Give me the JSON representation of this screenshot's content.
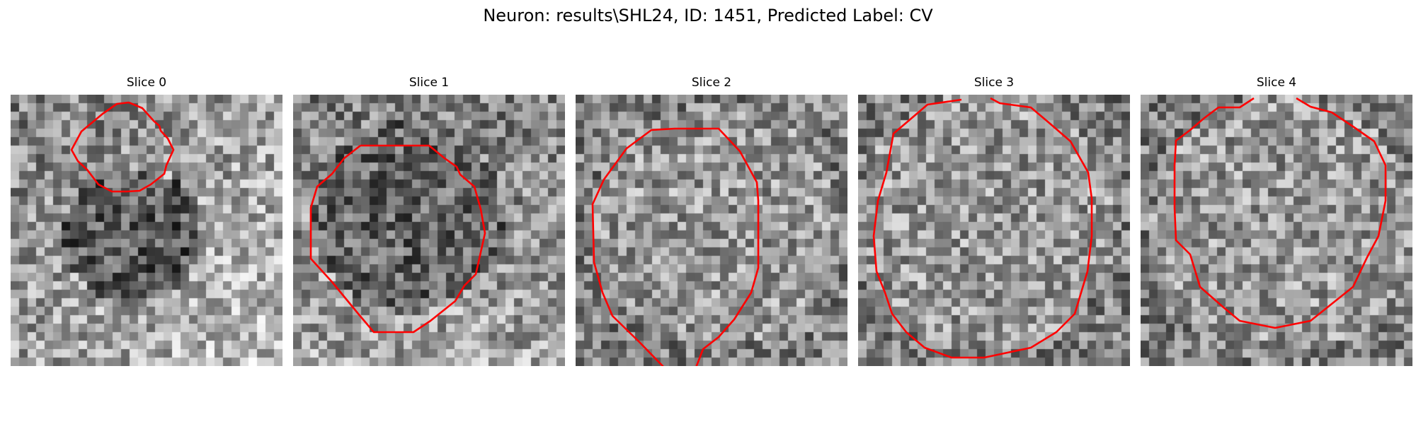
{
  "figure": {
    "title": "Neuron: results\\SHL24, ID: 1451, Predicted Label: CV",
    "contour_color": "#ff0000",
    "colormap": "gray"
  },
  "slices": [
    {
      "title": "Slice 0"
    },
    {
      "title": "Slice 1"
    },
    {
      "title": "Slice 2"
    },
    {
      "title": "Slice 3"
    },
    {
      "title": "Slice 4"
    }
  ]
}
